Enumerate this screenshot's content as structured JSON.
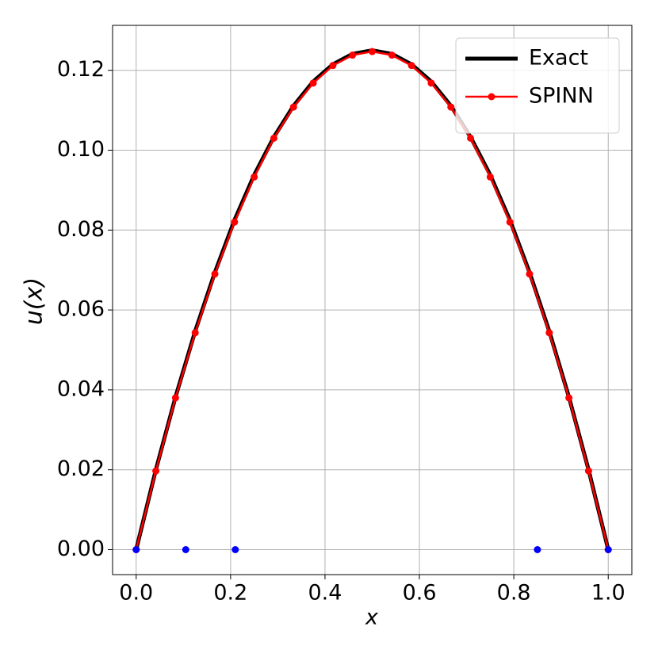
{
  "chart_data": {
    "type": "line",
    "xlabel": "x",
    "ylabel": "u(x)",
    "xlim": [
      -0.05,
      1.05
    ],
    "ylim": [
      -0.00625,
      0.13125
    ],
    "xticks": [
      {
        "value": 0,
        "label": "0.0"
      },
      {
        "value": 0.2,
        "label": "0.2"
      },
      {
        "value": 0.4,
        "label": "0.4"
      },
      {
        "value": 0.6,
        "label": "0.6"
      },
      {
        "value": 0.8,
        "label": "0.8"
      },
      {
        "value": 1,
        "label": "1.0"
      }
    ],
    "yticks": [
      {
        "value": 0,
        "label": "0.00"
      },
      {
        "value": 0.02,
        "label": "0.02"
      },
      {
        "value": 0.04,
        "label": "0.04"
      },
      {
        "value": 0.06,
        "label": "0.06"
      },
      {
        "value": 0.08,
        "label": "0.08"
      },
      {
        "value": 0.1,
        "label": "0.10"
      },
      {
        "value": 0.12,
        "label": "0.12"
      }
    ],
    "grid": true,
    "legend": "upper right",
    "series": [
      {
        "name": "Exact",
        "color": "#000000",
        "mode": "line",
        "width": 5,
        "x": [
          0,
          0.0417,
          0.0833,
          0.125,
          0.1667,
          0.2083,
          0.25,
          0.2917,
          0.3333,
          0.375,
          0.4167,
          0.4583,
          0.5,
          0.5417,
          0.5833,
          0.625,
          0.6667,
          0.7083,
          0.75,
          0.7917,
          0.8333,
          0.875,
          0.9167,
          0.9583,
          1
        ],
        "values": [
          0,
          0.02,
          0.0382,
          0.0547,
          0.0694,
          0.0825,
          0.0938,
          0.1033,
          0.1111,
          0.1172,
          0.1215,
          0.1241,
          0.125,
          0.1241,
          0.1215,
          0.1172,
          0.1111,
          0.1033,
          0.0938,
          0.0825,
          0.0694,
          0.0547,
          0.0382,
          0.02,
          0
        ]
      },
      {
        "name": "SPINN",
        "color": "#ff0000",
        "mode": "line-marker",
        "width": 2.5,
        "x": [
          0,
          0.0417,
          0.0833,
          0.125,
          0.1667,
          0.2083,
          0.25,
          0.2917,
          0.3333,
          0.375,
          0.4167,
          0.4583,
          0.5,
          0.5417,
          0.5833,
          0.625,
          0.6667,
          0.7083,
          0.75,
          0.7917,
          0.8333,
          0.875,
          0.9167,
          0.9583,
          1
        ],
        "values": [
          0,
          0.0197,
          0.038,
          0.0543,
          0.069,
          0.082,
          0.0933,
          0.103,
          0.1108,
          0.1168,
          0.1212,
          0.1238,
          0.1247,
          0.1238,
          0.1212,
          0.1168,
          0.1108,
          0.103,
          0.0933,
          0.082,
          0.069,
          0.0543,
          0.038,
          0.0197,
          0
        ]
      },
      {
        "color": "#0000ff",
        "mode": "marker",
        "x": [
          0,
          0.105,
          0.21,
          0.85,
          1
        ],
        "values": [
          0,
          0,
          0,
          0,
          0
        ]
      }
    ]
  }
}
